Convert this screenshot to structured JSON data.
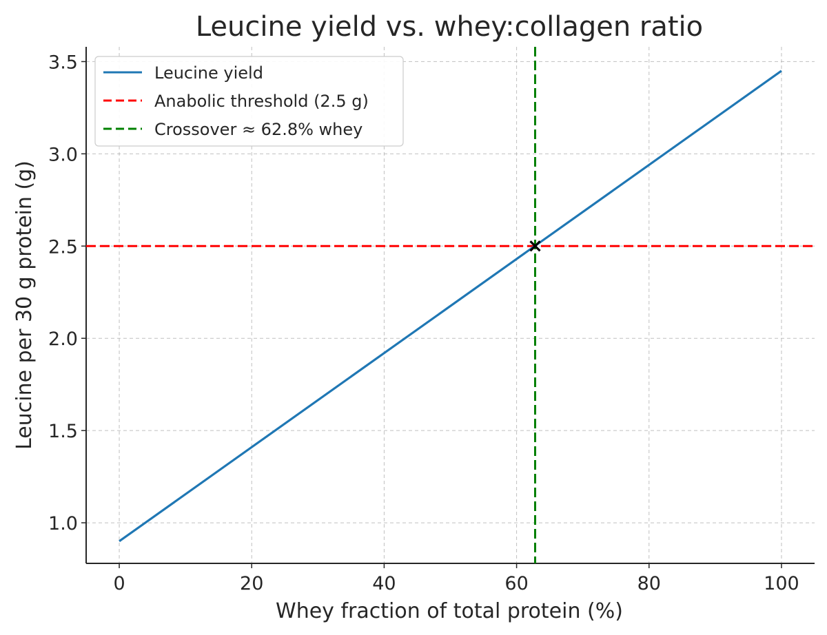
{
  "chart_data": {
    "type": "line",
    "title": "Leucine yield vs. whey:collagen ratio",
    "xlabel": "Whey fraction of total protein (%)",
    "ylabel": "Leucine per 30 g protein (g)",
    "xlim": [
      -5,
      105
    ],
    "ylim": [
      0.78,
      3.58
    ],
    "xticks": [
      0,
      20,
      40,
      60,
      80,
      100
    ],
    "xtick_labels": [
      "0",
      "20",
      "40",
      "60",
      "80",
      "100"
    ],
    "yticks": [
      1.0,
      1.5,
      2.0,
      2.5,
      3.0,
      3.5
    ],
    "ytick_labels": [
      "1.0",
      "1.5",
      "2.0",
      "2.5",
      "3.0",
      "3.5"
    ],
    "grid": true,
    "legend_position": "top-left",
    "series": [
      {
        "name": "Leucine yield",
        "style": "solid",
        "color": "#1f77b4",
        "x": [
          0,
          100
        ],
        "y": [
          0.9,
          3.45
        ]
      }
    ],
    "reference_lines": [
      {
        "name": "Anabolic threshold (2.5 g)",
        "orientation": "horizontal",
        "value": 2.5,
        "style": "dashed",
        "color": "#ff0000"
      },
      {
        "name": "Crossover ≈ 62.8% whey",
        "orientation": "vertical",
        "value": 62.8,
        "style": "dashed",
        "color": "#008000"
      }
    ],
    "markers": [
      {
        "x": 62.8,
        "y": 2.5,
        "symbol": "x",
        "color": "#000000"
      }
    ]
  }
}
